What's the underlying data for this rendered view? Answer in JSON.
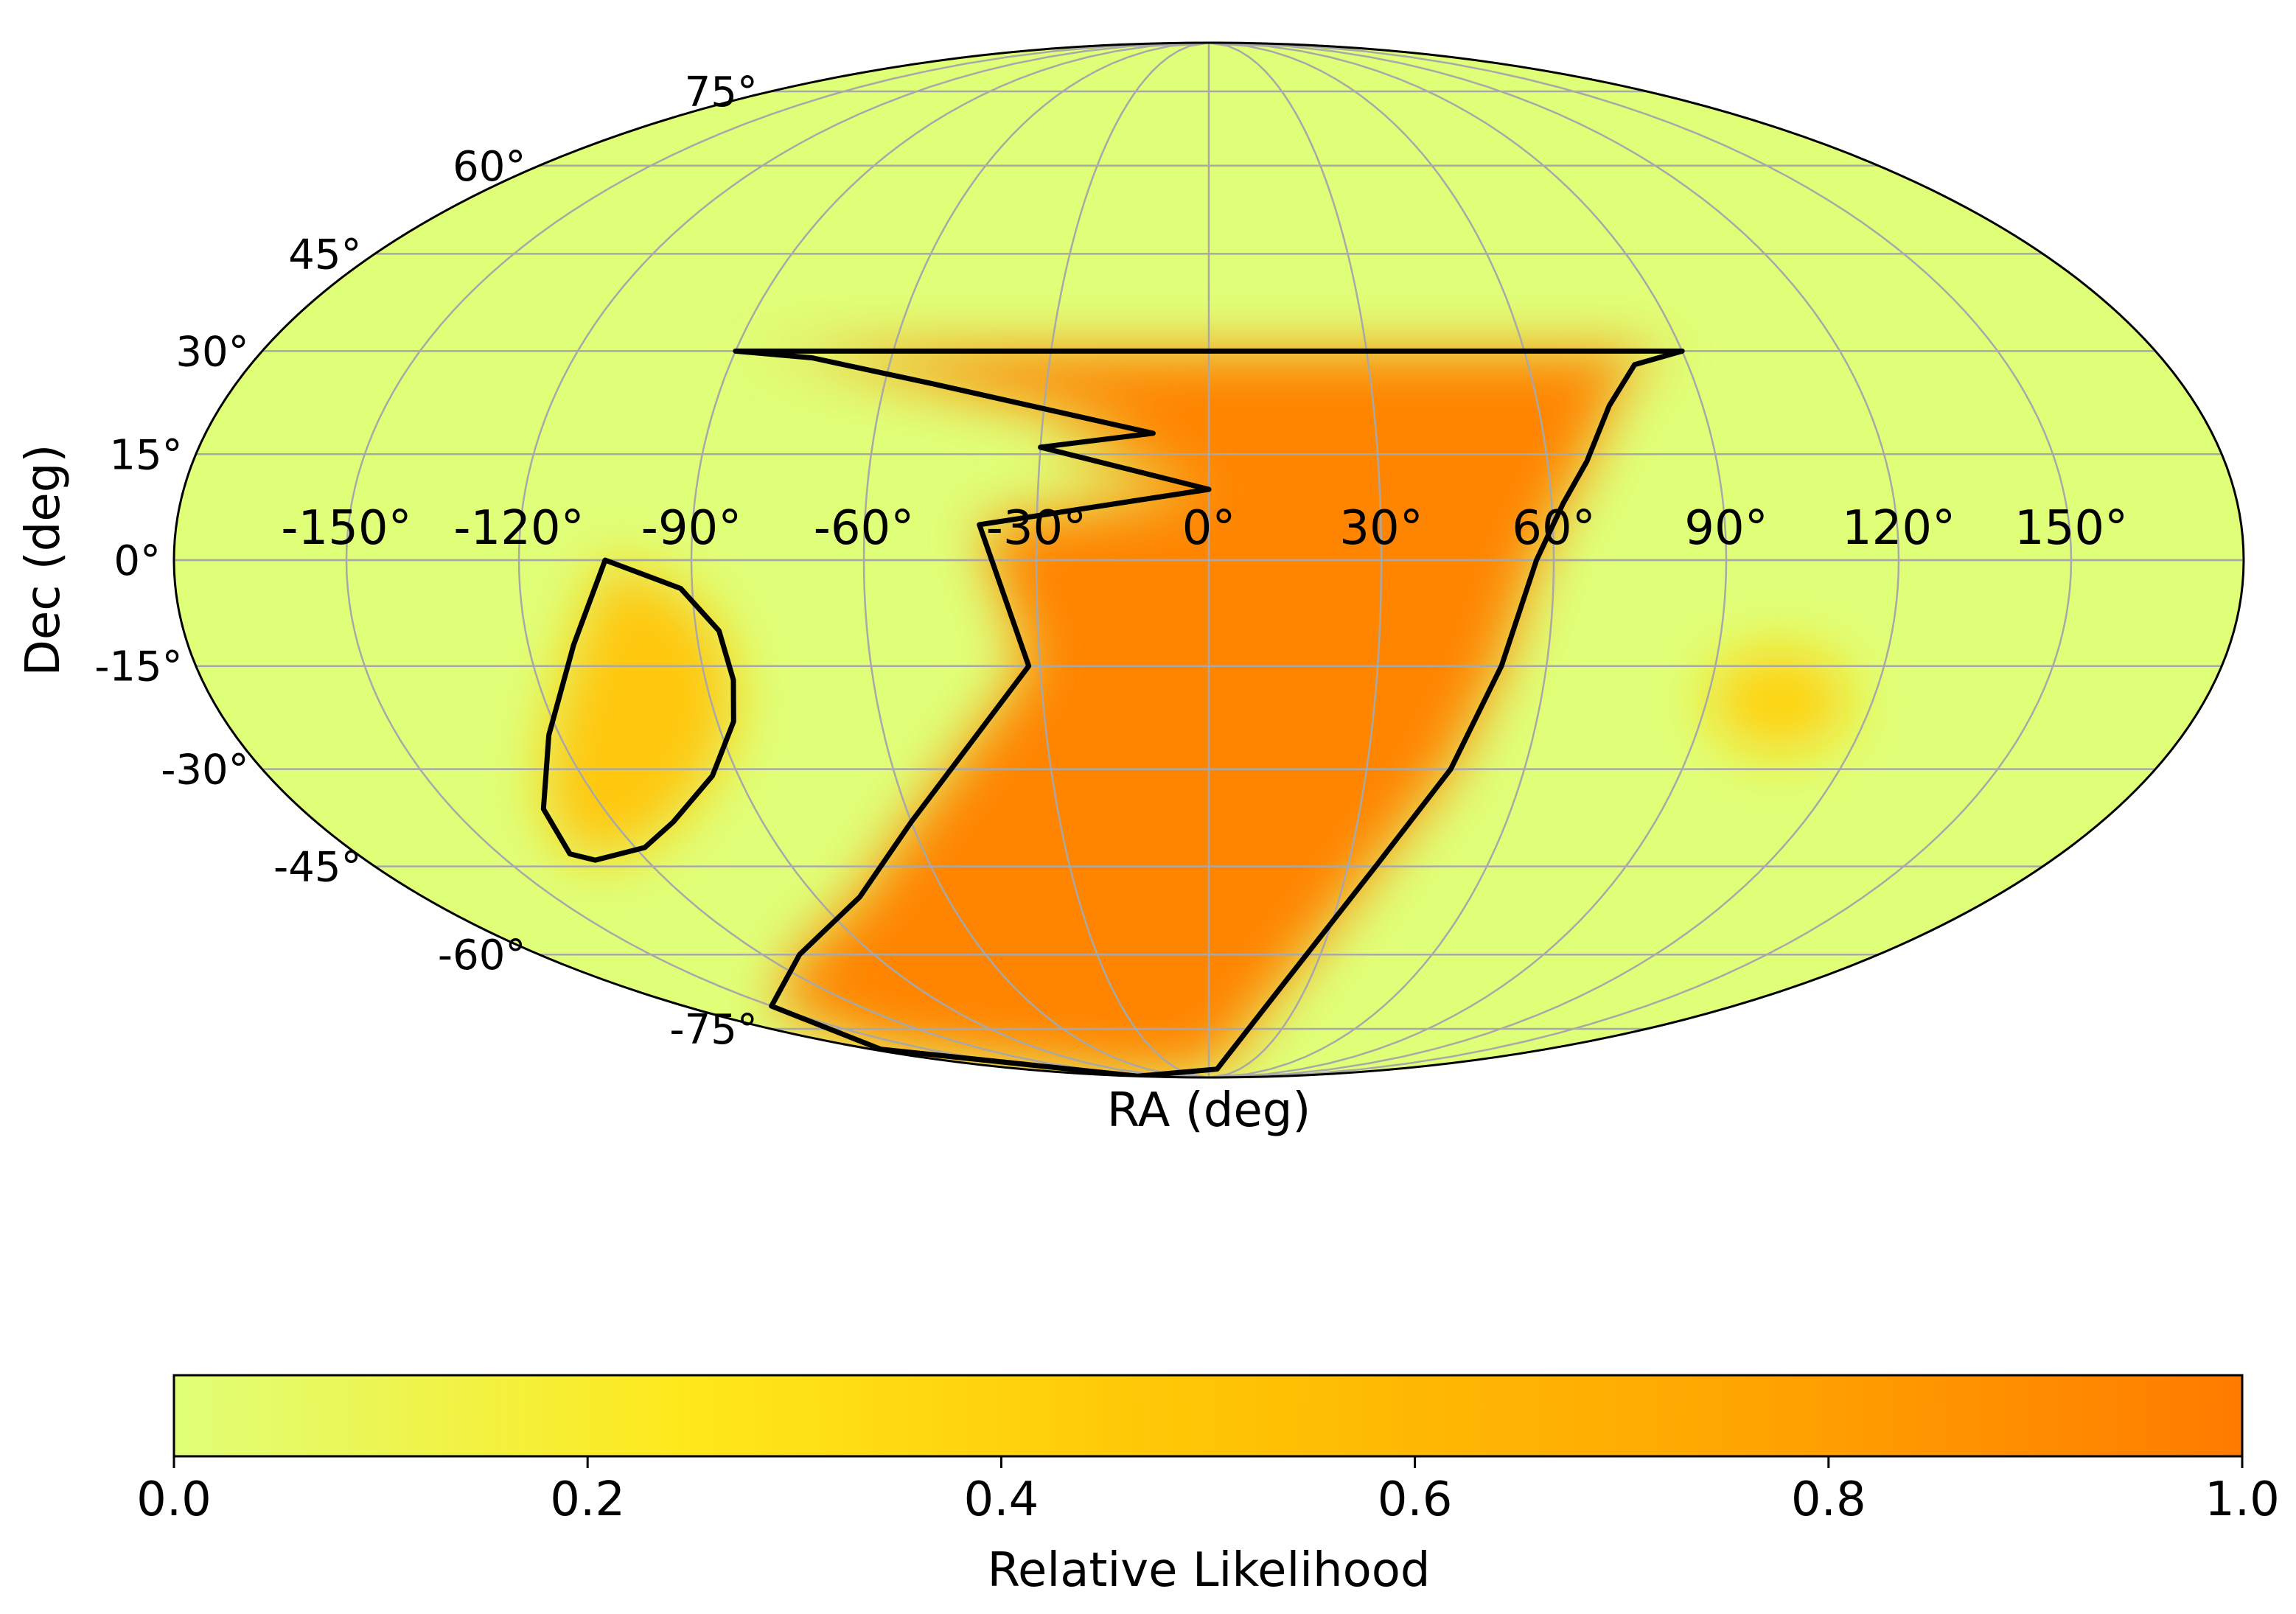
{
  "chart_data": {
    "type": "heatmap",
    "projection": "mollweide",
    "xlabel": "RA (deg)",
    "ylabel": "Dec (deg)",
    "ra_ticks": [
      -150,
      -120,
      -90,
      -60,
      -30,
      0,
      30,
      60,
      90,
      120,
      150
    ],
    "ra_tick_labels": [
      "-150°",
      "-120°",
      "-90°",
      "-60°",
      "-30°",
      "0°",
      "30°",
      "60°",
      "90°",
      "120°",
      "150°"
    ],
    "dec_ticks": [
      -75,
      -60,
      -45,
      -30,
      -15,
      0,
      15,
      30,
      45,
      60,
      75
    ],
    "dec_tick_labels": [
      "-75°",
      "-60°",
      "-45°",
      "-30°",
      "-15°",
      "0°",
      "15°",
      "30°",
      "45°",
      "60°",
      "75°"
    ],
    "grid": true,
    "likelihood_peak": {
      "ra": 103,
      "dec": -20
    },
    "contours": [
      {
        "name": "inner",
        "points": [
          [
            -105,
            0
          ],
          [
            -92,
            -4
          ],
          [
            -86,
            -10
          ],
          [
            -85,
            -17
          ],
          [
            -87,
            -23
          ],
          [
            -95,
            -31
          ],
          [
            -108,
            -38
          ],
          [
            -118,
            -42
          ],
          [
            -131,
            -44
          ],
          [
            -135,
            -43
          ],
          [
            -132,
            -36
          ],
          [
            -122,
            -25
          ],
          [
            -112,
            -12
          ],
          [
            -105,
            0
          ]
        ]
      },
      {
        "name": "outer",
        "points": [
          [
            -90,
            30
          ],
          [
            -75,
            29
          ],
          [
            -50,
            25
          ],
          [
            -10,
            18
          ],
          [
            -30,
            16
          ],
          [
            0,
            10
          ],
          [
            -40,
            5
          ],
          [
            -32,
            -15
          ],
          [
            -60,
            -38
          ],
          [
            -80,
            -50
          ],
          [
            -110,
            -60
          ],
          [
            -150,
            -70
          ],
          [
            -175,
            -80
          ],
          [
            -174,
            -89
          ],
          [
            8,
            -86
          ],
          [
            23,
            -65
          ],
          [
            36,
            -45
          ],
          [
            46,
            -30
          ],
          [
            52,
            -15
          ],
          [
            57,
            0
          ],
          [
            62,
            8
          ],
          [
            67,
            14
          ],
          [
            73,
            22
          ],
          [
            80,
            28
          ],
          [
            90,
            30
          ]
        ]
      }
    ],
    "colorbar": {
      "label": "Relative Likelihood",
      "range": [
        0,
        1
      ],
      "ticks": [
        0.0,
        0.2,
        0.4,
        0.6,
        0.8,
        1.0
      ],
      "tick_labels": [
        "0.0",
        "0.2",
        "0.4",
        "0.6",
        "0.8",
        "1.0"
      ],
      "colors": [
        "#e0ff78",
        "#ffe81a",
        "#ffc405",
        "#ffa701",
        "#ff7b00"
      ]
    }
  }
}
